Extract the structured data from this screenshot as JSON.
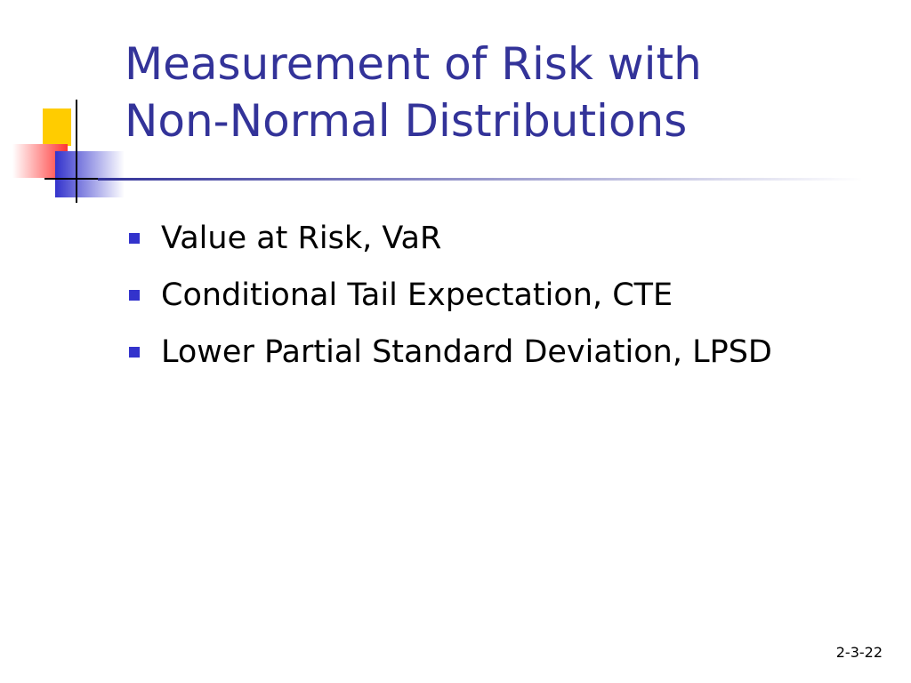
{
  "slide": {
    "title_lines": [
      "Measurement of Risk with",
      "Non-Normal Distributions"
    ],
    "bullets": [
      "Value at Risk, VaR",
      "Conditional Tail Expectation, CTE",
      "Lower Partial Standard Deviation, LPSD"
    ],
    "slide_number": "2-3-22"
  }
}
